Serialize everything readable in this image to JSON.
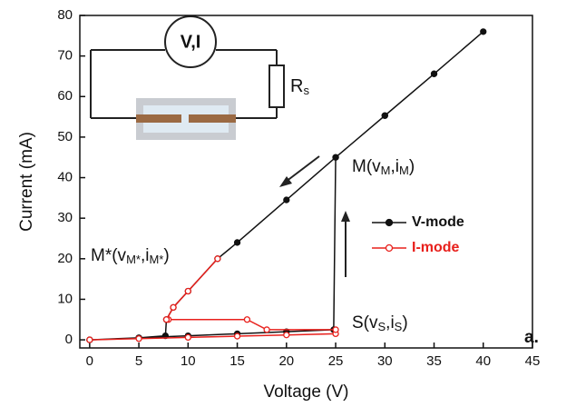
{
  "chart_data": {
    "type": "line",
    "x_label": "Voltage (V)",
    "y_label": "Current (mA)",
    "xlim": [
      -1,
      45
    ],
    "xticks": [
      0,
      5,
      10,
      15,
      20,
      25,
      30,
      35,
      40,
      45
    ],
    "ylim": [
      -2,
      80
    ],
    "yticks": [
      0,
      10,
      20,
      30,
      40,
      50,
      60,
      70,
      80
    ],
    "legend": "center right",
    "series": [
      {
        "name": "V-mode",
        "color": "#111111",
        "marker": "filled",
        "x": [
          0,
          5,
          10,
          15,
          20,
          24.8,
          25,
          30,
          35,
          40,
          35,
          30,
          25,
          20,
          15,
          13,
          10,
          8.5,
          7.8,
          7.7,
          5,
          0
        ],
        "values": [
          0,
          0.5,
          1,
          1.5,
          2,
          2.5,
          45,
          55.3,
          65.6,
          76,
          65.6,
          55.3,
          45,
          34.5,
          24,
          20,
          12,
          8,
          5,
          1,
          0.5,
          0
        ]
      },
      {
        "name": "I-mode",
        "color": "#e8201c",
        "marker": "open",
        "x": [
          0,
          5,
          10,
          15,
          20,
          25,
          25,
          18,
          16,
          8,
          7.8,
          8.5,
          10,
          13
        ],
        "values": [
          0,
          0.3,
          0.6,
          0.9,
          1.2,
          1.5,
          2.5,
          2.5,
          5,
          5,
          5,
          8,
          12,
          20
        ]
      }
    ],
    "annotations": [
      {
        "parts": [
          "M(v",
          "M",
          ",i",
          "M",
          ")"
        ]
      },
      {
        "parts": [
          "M*(v",
          "M*",
          ",i",
          "M*",
          ")"
        ]
      },
      {
        "parts": [
          "S(v",
          "S",
          ",i",
          "S",
          ")"
        ]
      },
      {
        "parts": [
          "a."
        ]
      }
    ],
    "inset": {
      "meter": "V,I",
      "resistor": [
        "R",
        "s"
      ]
    }
  }
}
